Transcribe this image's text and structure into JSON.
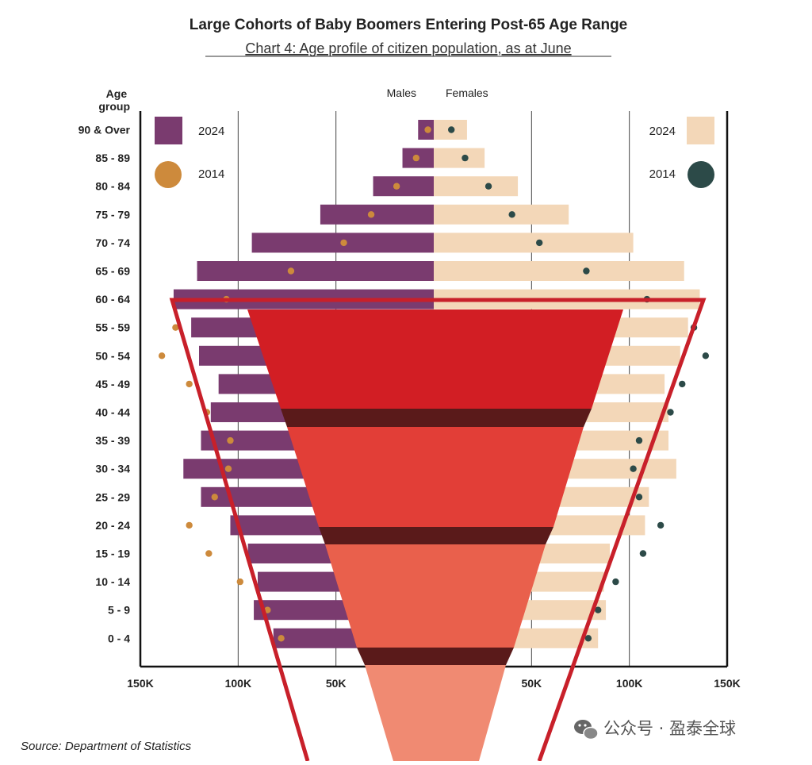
{
  "chart_data": {
    "type": "bar",
    "subtype": "population-pyramid",
    "title": "Large Cohorts of Baby Boomers Entering Post-65 Age Range",
    "subtitle": "Chart 4: Age profile of citizen population, as at June",
    "yaxis_title": "Age\ngroup",
    "side_labels": {
      "left": "Males",
      "right": "Females"
    },
    "categories": [
      "90 & Over",
      "85 - 89",
      "80 - 84",
      "75 - 79",
      "70 - 74",
      "65 - 69",
      "60 - 64",
      "55 - 59",
      "50 - 54",
      "45 - 49",
      "40 - 44",
      "35 - 39",
      "30 - 34",
      "25 - 29",
      "20 - 24",
      "15 - 19",
      "10 - 14",
      "5 - 9",
      "0 - 4"
    ],
    "xlim": [
      -150000,
      150000
    ],
    "xticks": [
      -150000,
      -100000,
      -50000,
      0,
      50000,
      100000,
      150000
    ],
    "xtick_labels": [
      "150K",
      "100K",
      "50K",
      "",
      "50K",
      "100K",
      "150K"
    ],
    "series": [
      {
        "name": "2024",
        "side": "Males",
        "kind": "bar",
        "color": "#7a3b6f",
        "values": [
          8000,
          16000,
          31000,
          58000,
          93000,
          121000,
          133000,
          124000,
          120000,
          110000,
          114000,
          119000,
          128000,
          119000,
          104000,
          95000,
          90000,
          92000,
          82000
        ]
      },
      {
        "name": "2024",
        "side": "Females",
        "kind": "bar",
        "color": "#f3d7b8",
        "values": [
          17000,
          26000,
          43000,
          69000,
          102000,
          128000,
          136000,
          130000,
          126000,
          118000,
          120000,
          120000,
          124000,
          110000,
          108000,
          90000,
          87000,
          88000,
          84000
        ]
      },
      {
        "name": "2014",
        "side": "Males",
        "kind": "dot",
        "color": "#cd8a3c",
        "values": [
          3000,
          9000,
          19000,
          32000,
          46000,
          73000,
          106000,
          132000,
          139000,
          125000,
          116000,
          104000,
          105000,
          112000,
          125000,
          115000,
          99000,
          85000,
          78000
        ]
      },
      {
        "name": "2014",
        "side": "Females",
        "kind": "dot",
        "color": "#2c4a48",
        "values": [
          9000,
          16000,
          28000,
          40000,
          54000,
          78000,
          109000,
          133000,
          139000,
          127000,
          121000,
          105000,
          102000,
          105000,
          116000,
          107000,
          93000,
          84000,
          79000
        ]
      }
    ],
    "legend": {
      "left": [
        {
          "label": "2024",
          "marker": "square",
          "color": "#7a3b6f"
        },
        {
          "label": "2014",
          "marker": "circle",
          "color": "#cd8a3c"
        }
      ],
      "right": [
        {
          "label": "2024",
          "marker": "square",
          "color": "#f3d7b8"
        },
        {
          "label": "2014",
          "marker": "circle",
          "color": "#2c4a48"
        }
      ]
    },
    "grid": true,
    "source": "Source: Department of Statistics"
  },
  "overlay": {
    "funnel_colors": [
      "#d21e24",
      "#e23e37",
      "#e9604c",
      "#f08a72"
    ],
    "outline_color": "#c8202a"
  },
  "watermark": {
    "text": "公众号 · 盈泰全球",
    "icon": "wechat-icon"
  }
}
